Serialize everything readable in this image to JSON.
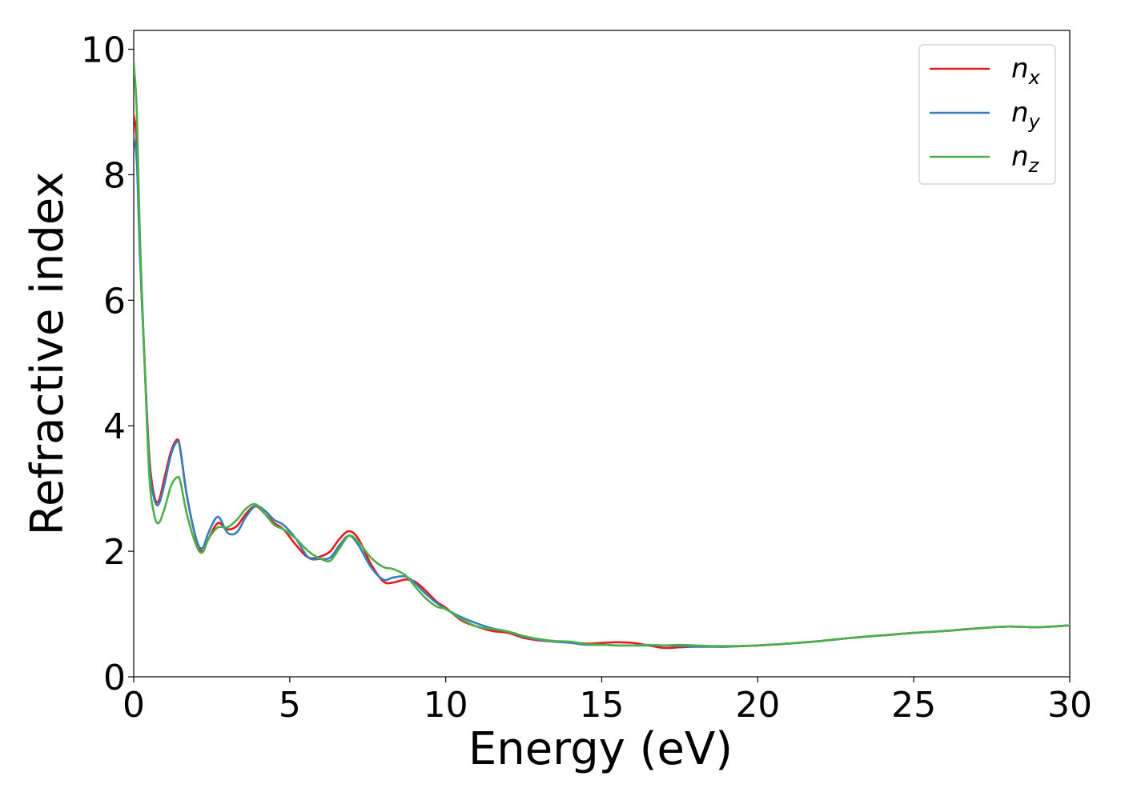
{
  "chart_data": {
    "type": "line",
    "title": "",
    "xlabel": "Energy (eV)",
    "ylabel": "Refractive index",
    "xlim": [
      0,
      30
    ],
    "ylim": [
      0,
      10.3
    ],
    "xticks": [
      0,
      5,
      10,
      15,
      20,
      25,
      30
    ],
    "yticks": [
      0,
      2,
      4,
      6,
      8,
      10
    ],
    "legend_position": "top-right",
    "series": [
      {
        "name": "n",
        "subscript": "x",
        "color": "#e41a1c",
        "x": [
          0,
          0.1,
          0.2,
          0.35,
          0.5,
          0.65,
          0.8,
          1.0,
          1.2,
          1.4,
          1.5,
          1.7,
          2.0,
          2.2,
          2.4,
          2.7,
          3.0,
          3.3,
          3.6,
          3.9,
          4.2,
          4.5,
          4.8,
          5.2,
          5.6,
          6.0,
          6.3,
          6.6,
          6.9,
          7.2,
          7.6,
          8.0,
          8.3,
          8.7,
          9.0,
          9.3,
          9.7,
          10.0,
          10.5,
          11.0,
          11.5,
          12.0,
          12.5,
          13.0,
          13.5,
          14.0,
          14.5,
          15.0,
          15.5,
          16.0,
          16.5,
          17.0,
          17.5,
          18.0,
          18.5,
          19.0,
          19.5,
          20.0,
          21.0,
          22.0,
          23.0,
          24.0,
          25.0,
          26.0,
          27.0,
          28.0,
          29.0,
          30.0
        ],
        "values": [
          8.95,
          8.5,
          6.8,
          5.0,
          3.5,
          2.9,
          2.8,
          3.2,
          3.6,
          3.78,
          3.6,
          2.9,
          2.2,
          2.0,
          2.2,
          2.45,
          2.35,
          2.4,
          2.6,
          2.72,
          2.6,
          2.45,
          2.35,
          2.1,
          1.9,
          1.92,
          2.0,
          2.2,
          2.32,
          2.2,
          1.8,
          1.52,
          1.5,
          1.55,
          1.52,
          1.4,
          1.2,
          1.1,
          0.9,
          0.8,
          0.73,
          0.7,
          0.62,
          0.58,
          0.56,
          0.55,
          0.53,
          0.54,
          0.55,
          0.54,
          0.5,
          0.46,
          0.47,
          0.48,
          0.48,
          0.48,
          0.49,
          0.5,
          0.53,
          0.57,
          0.62,
          0.66,
          0.7,
          0.73,
          0.77,
          0.8,
          0.79,
          0.82
        ]
      },
      {
        "name": "n",
        "subscript": "y",
        "color": "#377eb8",
        "x": [
          0,
          0.1,
          0.2,
          0.35,
          0.5,
          0.65,
          0.8,
          1.0,
          1.2,
          1.4,
          1.5,
          1.7,
          2.0,
          2.2,
          2.4,
          2.7,
          3.0,
          3.3,
          3.6,
          3.9,
          4.2,
          4.5,
          4.8,
          5.2,
          5.6,
          6.0,
          6.3,
          6.6,
          6.9,
          7.2,
          7.6,
          8.0,
          8.3,
          8.7,
          9.0,
          9.3,
          9.7,
          10.0,
          10.5,
          11.0,
          11.5,
          12.0,
          12.5,
          13.0,
          13.5,
          14.0,
          14.5,
          15.0,
          15.5,
          16.0,
          16.5,
          17.0,
          17.5,
          18.0,
          18.5,
          19.0,
          19.5,
          20.0,
          21.0,
          22.0,
          23.0,
          24.0,
          25.0,
          26.0,
          27.0,
          28.0,
          29.0,
          30.0
        ],
        "values": [
          8.6,
          8.2,
          6.7,
          5.0,
          3.4,
          2.85,
          2.75,
          3.1,
          3.55,
          3.75,
          3.6,
          2.9,
          2.2,
          2.05,
          2.3,
          2.55,
          2.3,
          2.3,
          2.55,
          2.72,
          2.65,
          2.5,
          2.42,
          2.2,
          1.9,
          1.88,
          1.9,
          2.1,
          2.25,
          2.1,
          1.75,
          1.55,
          1.58,
          1.6,
          1.5,
          1.35,
          1.18,
          1.08,
          0.95,
          0.85,
          0.77,
          0.72,
          0.64,
          0.59,
          0.56,
          0.54,
          0.51,
          0.51,
          0.5,
          0.5,
          0.5,
          0.5,
          0.49,
          0.48,
          0.48,
          0.48,
          0.49,
          0.5,
          0.53,
          0.57,
          0.62,
          0.66,
          0.7,
          0.73,
          0.77,
          0.8,
          0.79,
          0.82
        ]
      },
      {
        "name": "n",
        "subscript": "z",
        "color": "#4daf4a",
        "x": [
          0,
          0.1,
          0.2,
          0.35,
          0.5,
          0.65,
          0.8,
          1.0,
          1.2,
          1.4,
          1.5,
          1.7,
          2.0,
          2.2,
          2.4,
          2.7,
          3.0,
          3.3,
          3.6,
          3.9,
          4.2,
          4.5,
          4.8,
          5.2,
          5.6,
          6.0,
          6.3,
          6.6,
          6.9,
          7.2,
          7.6,
          8.0,
          8.3,
          8.7,
          9.0,
          9.3,
          9.7,
          10.0,
          10.5,
          11.0,
          11.5,
          12.0,
          12.5,
          13.0,
          13.5,
          14.0,
          14.5,
          15.0,
          15.5,
          16.0,
          16.5,
          17.0,
          17.5,
          18.0,
          18.5,
          19.0,
          19.5,
          20.0,
          21.0,
          22.0,
          23.0,
          24.0,
          25.0,
          26.0,
          27.0,
          28.0,
          29.0,
          30.0
        ],
        "values": [
          9.8,
          9.0,
          7.0,
          5.0,
          3.2,
          2.6,
          2.45,
          2.7,
          3.05,
          3.18,
          3.1,
          2.6,
          2.1,
          1.98,
          2.2,
          2.38,
          2.38,
          2.5,
          2.68,
          2.75,
          2.6,
          2.42,
          2.35,
          2.2,
          2.0,
          1.88,
          1.85,
          2.05,
          2.25,
          2.15,
          1.9,
          1.75,
          1.72,
          1.62,
          1.45,
          1.28,
          1.12,
          1.08,
          0.92,
          0.8,
          0.76,
          0.72,
          0.65,
          0.6,
          0.57,
          0.56,
          0.52,
          0.51,
          0.5,
          0.5,
          0.51,
          0.5,
          0.51,
          0.5,
          0.49,
          0.49,
          0.49,
          0.5,
          0.53,
          0.57,
          0.62,
          0.66,
          0.7,
          0.73,
          0.77,
          0.8,
          0.79,
          0.82
        ]
      }
    ]
  }
}
